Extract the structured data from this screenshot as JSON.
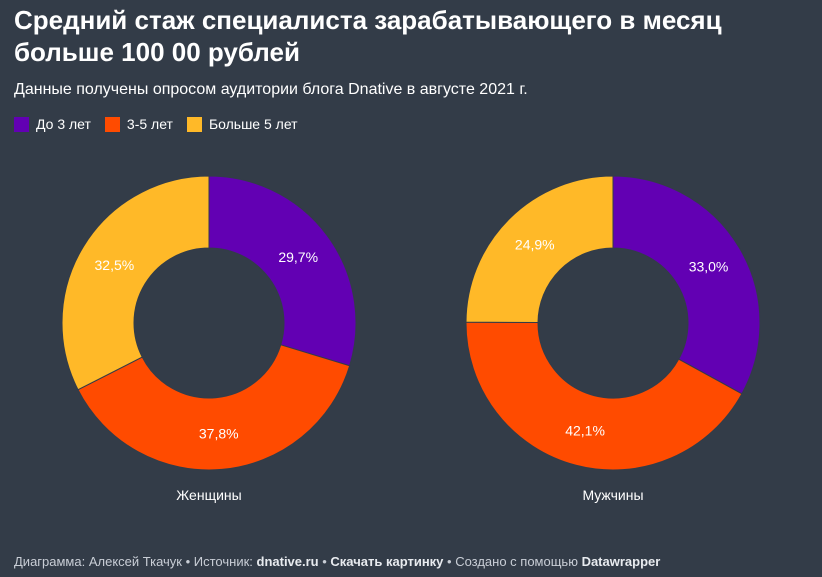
{
  "title": "Средний стаж специалиста зарабатывающего в месяц больше 100 00 рублей",
  "subtitle": "Данные получены опросом аудитории блога Dnative в августе 2021 г.",
  "legend": [
    {
      "label": "До 3 лет",
      "color": "#6200b3"
    },
    {
      "label": "3-5 лет",
      "color": "#ff4b00"
    },
    {
      "label": "Больше 5 лет",
      "color": "#ffb928"
    }
  ],
  "chart_data": [
    {
      "type": "pie",
      "name": "Женщины",
      "categories": [
        "До 3 лет",
        "3-5 лет",
        "Больше 5 лет"
      ],
      "values": [
        29.7,
        37.8,
        32.5
      ],
      "labels": [
        "29,7%",
        "37,8%",
        "32,5%"
      ]
    },
    {
      "type": "pie",
      "name": "Мужчины",
      "categories": [
        "До 3 лет",
        "3-5 лет",
        "Больше 5 лет"
      ],
      "values": [
        33.0,
        42.1,
        24.9
      ],
      "labels": [
        "33,0%",
        "42,1%",
        "24,9%"
      ]
    }
  ],
  "footer": {
    "chart_prefix": "Диаграмма: Алексей Ткачук • Источник: ",
    "source": "dnative.ru",
    "sep1": " • ",
    "download": "Скачать картинку",
    "created_prefix": " • Создано с помощью ",
    "tool": "Datawrapper"
  }
}
